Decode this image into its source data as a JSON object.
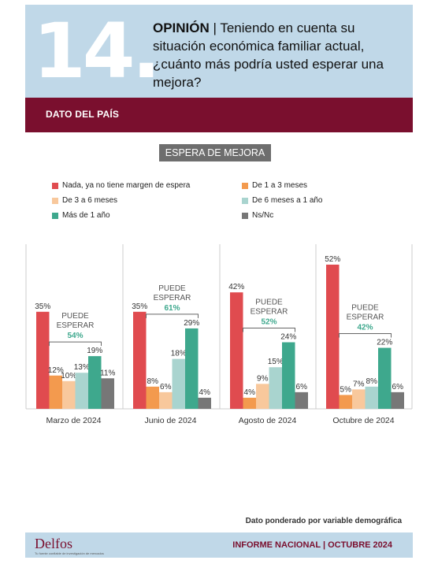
{
  "header": {
    "number": "14.",
    "question_bold": "OPINIÓN",
    "question_rest": " | Teniendo en cuenta su situación económica familiar actual, ¿cuánto más podría usted esperar una mejora?"
  },
  "band": {
    "label": "DATO DEL PAÍS"
  },
  "colors": {
    "nada": "#e04b4f",
    "uno_tres": "#f39a4e",
    "tres_seis": "#f8c89c",
    "seis_anio": "#a9d4cf",
    "mas_anio": "#3ea88d",
    "nsnc": "#777777",
    "accent": "#3ea88d",
    "brand": "#7a0f2e"
  },
  "chart_data": {
    "type": "bar",
    "title": "ESPERA DE MEJORA",
    "categories": [
      "Marzo  de 2024",
      "Junio de 2024",
      "Agosto de 2024",
      "Octubre de 2024"
    ],
    "series": [
      {
        "name": "Nada, ya no tiene margen de espera",
        "values": [
          35,
          35,
          42,
          52
        ],
        "color": "#e04b4f"
      },
      {
        "name": "De 1 a 3 meses",
        "values": [
          12,
          8,
          4,
          5
        ],
        "color": "#f39a4e"
      },
      {
        "name": "De 3 a 6 meses",
        "values": [
          10,
          6,
          9,
          7
        ],
        "color": "#f8c89c"
      },
      {
        "name": "De 6 meses a 1 año",
        "values": [
          13,
          18,
          15,
          8
        ],
        "color": "#a9d4cf"
      },
      {
        "name": "Más de 1 año",
        "values": [
          19,
          29,
          24,
          22
        ],
        "color": "#3ea88d"
      },
      {
        "name": "Ns/Nc",
        "values": [
          11,
          4,
          6,
          6
        ],
        "color": "#777777"
      }
    ],
    "annotations": [
      {
        "line1": "PUEDE",
        "line2": "ESPERAR",
        "value": "54%"
      },
      {
        "line1": "PUEDE",
        "line2": "ESPERAR",
        "value": "61%"
      },
      {
        "line1": "PUEDE",
        "line2": "ESPERAR",
        "value": "52%"
      },
      {
        "line1": "PUEDE",
        "line2": "ESPERAR",
        "value": "42%"
      }
    ],
    "legend_position": "top"
  },
  "footer": {
    "note": "Dato ponderado por variable demográfica",
    "logo": "Delfos",
    "logo_tagline": "Tu fuente confiable de investigación de mercados",
    "report": "INFORME NACIONAL | OCTUBRE 2024"
  }
}
